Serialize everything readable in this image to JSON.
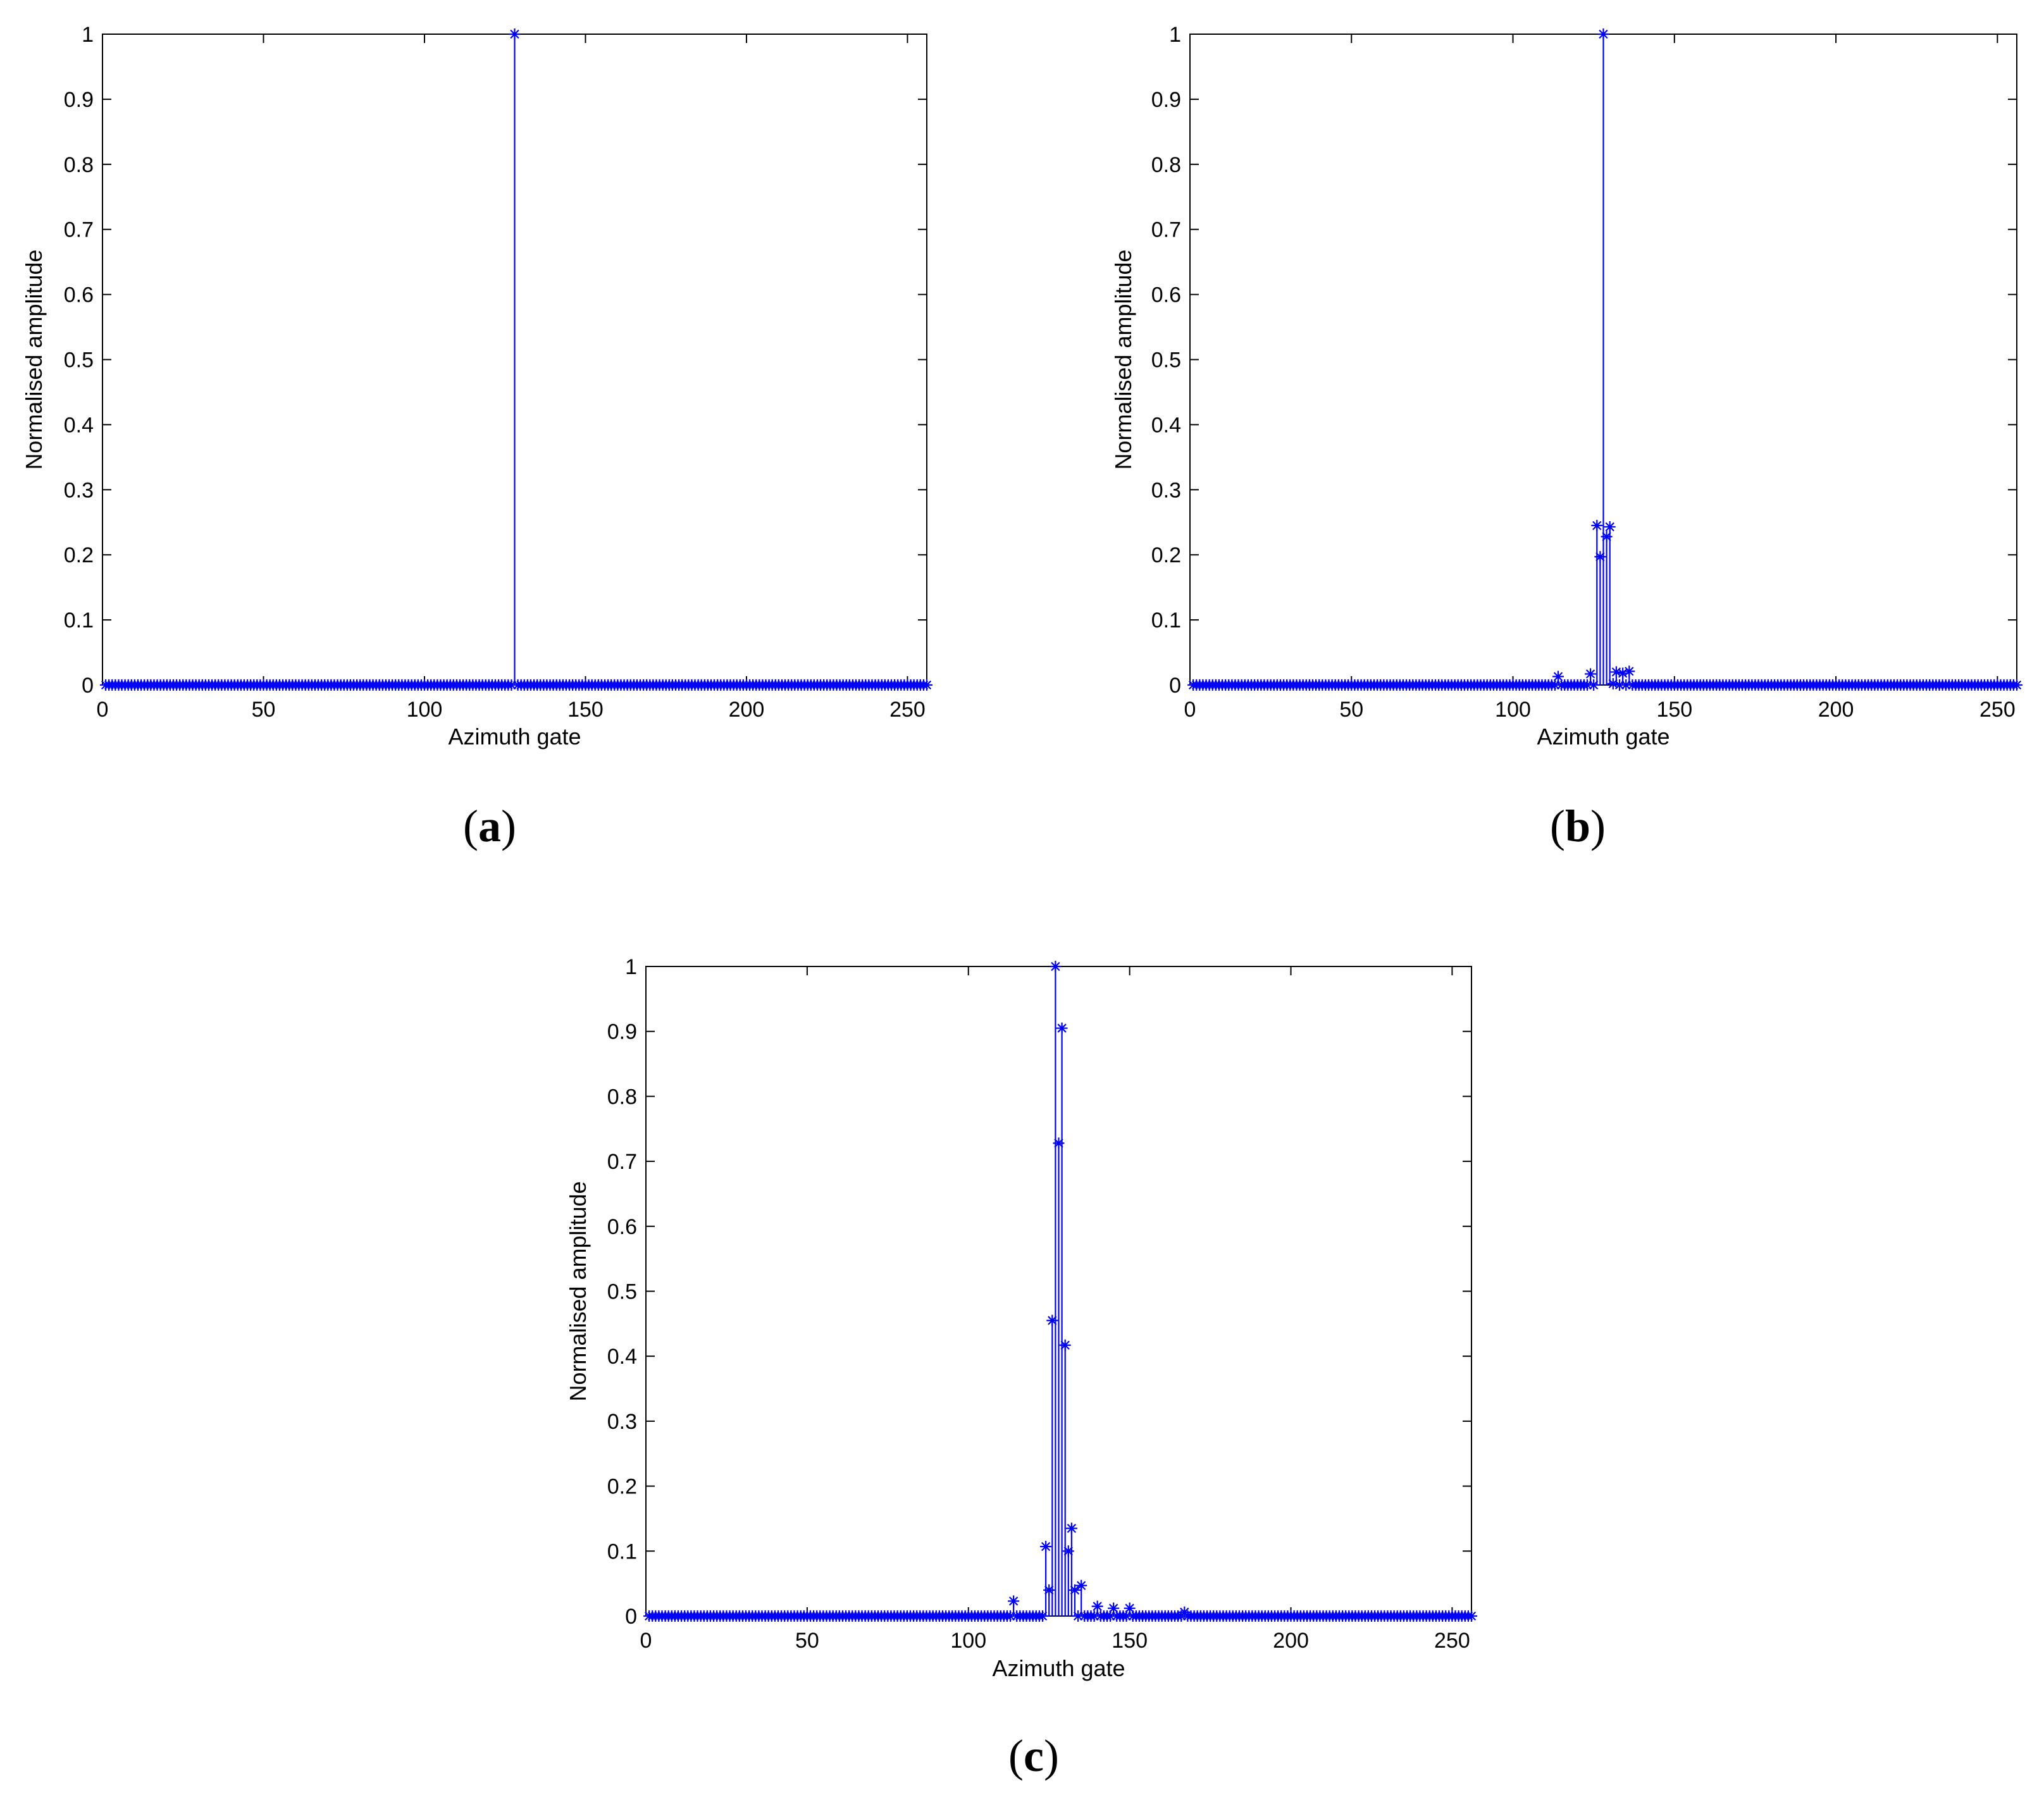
{
  "chart_data": [
    {
      "type": "stem",
      "caption": "a",
      "xlabel": "Azimuth gate",
      "ylabel": "Normalised amplitude",
      "xlim": [
        0,
        256
      ],
      "ylim": [
        0,
        1
      ],
      "xticks": [
        0,
        50,
        100,
        150,
        200,
        250
      ],
      "yticks": [
        0,
        0.1,
        0.2,
        0.3,
        0.4,
        0.5,
        0.6,
        0.7,
        0.8,
        0.9,
        1
      ],
      "marker": "asterisk",
      "color": "#0000ff",
      "n_samples": 256,
      "baseline": 0,
      "nonzero": [
        [
          128,
          1.0
        ]
      ]
    },
    {
      "type": "stem",
      "caption": "b",
      "xlabel": "Azimuth gate",
      "ylabel": "Normalised amplitude",
      "xlim": [
        0,
        256
      ],
      "ylim": [
        0,
        1
      ],
      "xticks": [
        0,
        50,
        100,
        150,
        200,
        250
      ],
      "yticks": [
        0,
        0.1,
        0.2,
        0.3,
        0.4,
        0.5,
        0.6,
        0.7,
        0.8,
        0.9,
        1
      ],
      "marker": "asterisk",
      "color": "#0000ff",
      "n_samples": 256,
      "baseline": 0,
      "nonzero": [
        [
          114,
          0.013
        ],
        [
          124,
          0.017
        ],
        [
          126,
          0.245
        ],
        [
          127,
          0.197
        ],
        [
          128,
          1.0
        ],
        [
          129,
          0.228
        ],
        [
          130,
          0.243
        ],
        [
          131,
          0.002
        ],
        [
          132,
          0.02
        ],
        [
          134,
          0.018
        ],
        [
          136,
          0.021
        ]
      ]
    },
    {
      "type": "stem",
      "caption": "c",
      "xlabel": "Azimuth gate",
      "ylabel": "Normalised amplitude",
      "xlim": [
        0,
        256
      ],
      "ylim": [
        0,
        1
      ],
      "xticks": [
        0,
        50,
        100,
        150,
        200,
        250
      ],
      "yticks": [
        0,
        0.1,
        0.2,
        0.3,
        0.4,
        0.5,
        0.6,
        0.7,
        0.8,
        0.9,
        1
      ],
      "marker": "asterisk",
      "color": "#0000ff",
      "n_samples": 256,
      "baseline": 0,
      "nonzero": [
        [
          114,
          0.023
        ],
        [
          124,
          0.107
        ],
        [
          125,
          0.04
        ],
        [
          126,
          0.455
        ],
        [
          127,
          1.0
        ],
        [
          128,
          0.728
        ],
        [
          129,
          0.905
        ],
        [
          130,
          0.417
        ],
        [
          131,
          0.1
        ],
        [
          132,
          0.135
        ],
        [
          133,
          0.04
        ],
        [
          135,
          0.047
        ],
        [
          140,
          0.015
        ],
        [
          145,
          0.012
        ],
        [
          150,
          0.012
        ],
        [
          167,
          0.006
        ]
      ]
    }
  ]
}
